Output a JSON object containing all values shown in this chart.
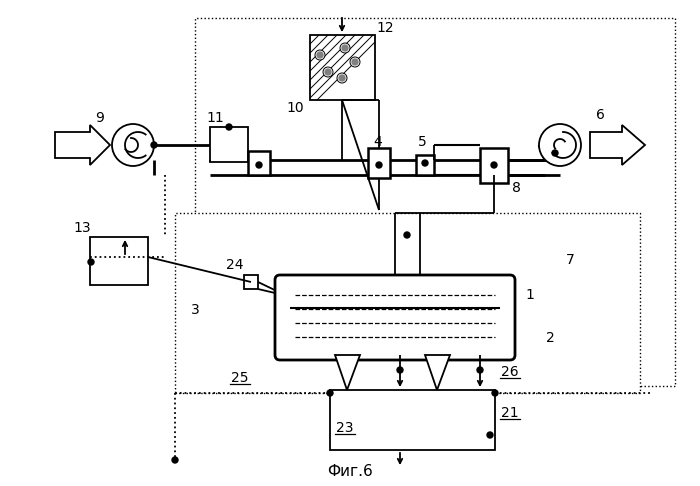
{
  "title": "Фиг.6",
  "bg_color": "#ffffff",
  "line_color": "#000000",
  "fig_width": 7.0,
  "fig_height": 4.86,
  "dpi": 100
}
